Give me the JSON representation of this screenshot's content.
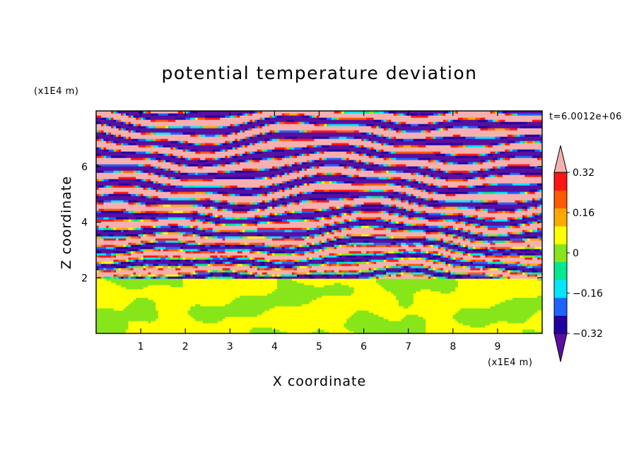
{
  "chart_data": {
    "type": "heatmap",
    "title": "potential temperature deviation",
    "xlabel": "X coordinate",
    "ylabel": "Z coordinate",
    "x_unit": "(x1E4 m)",
    "y_unit": "(x1E4 m)",
    "time_label": "t=6.0012e+06",
    "xlim": [
      0,
      10
    ],
    "ylim": [
      0,
      8
    ],
    "xticks": [
      "1",
      "2",
      "3",
      "4",
      "5",
      "6",
      "7",
      "8",
      "9"
    ],
    "yticks": [
      "2",
      "4",
      "6"
    ],
    "grid": false,
    "colorbar": {
      "placement": "right",
      "min": -0.4,
      "max": 0.4,
      "step": 0.08,
      "extend": "both",
      "tick_labels": [
        "0.32",
        "0.16",
        "0",
        "−0.16",
        "−0.32"
      ],
      "tick_values": [
        0.32,
        0.16,
        0,
        -0.16,
        -0.32
      ],
      "colors": [
        "#5a0fa0",
        "#2200a0",
        "#1e64ff",
        "#00e8ff",
        "#00e890",
        "#86e61a",
        "#ffff00",
        "#ffa800",
        "#ff5a00",
        "#ff1414",
        "#f6b0b0"
      ]
    }
  }
}
